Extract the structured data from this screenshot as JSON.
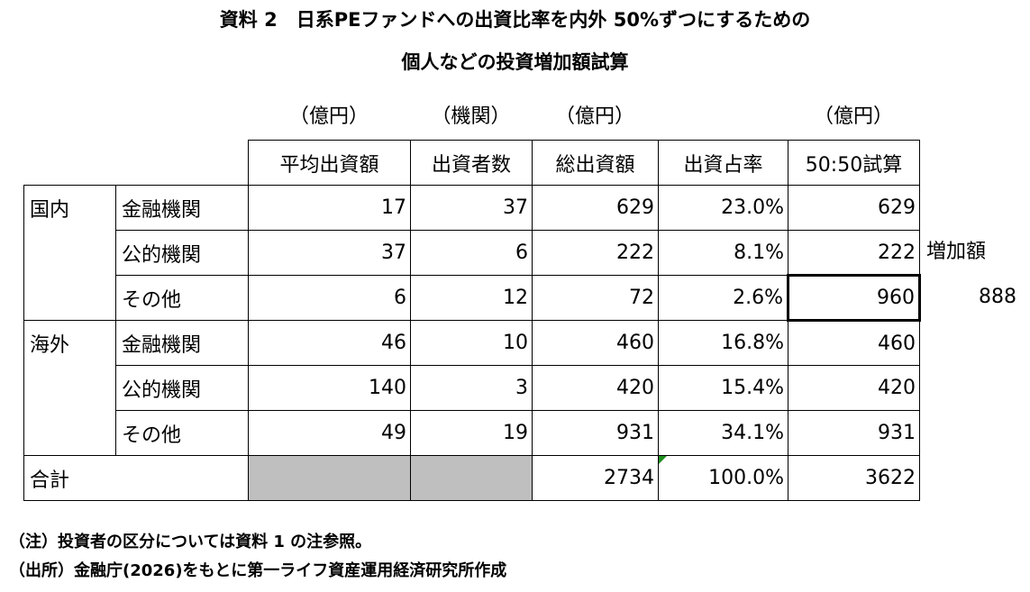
{
  "title": {
    "line1": "資料 2　日系PEファンドへの出資比率を内外 50%ずつにするための",
    "line2": "個人などの投資増加額試算"
  },
  "units": {
    "avg": "（億円）",
    "count": "（機関）",
    "total": "（億円）",
    "trial": "（億円）"
  },
  "table": {
    "headers": [
      "平均出資額",
      "出資者数",
      "総出資額",
      "出資占率",
      "50:50試算"
    ],
    "rows": [
      {
        "region": "国内",
        "category": "金融機関",
        "avg": "17",
        "count": "37",
        "total": "629",
        "share": "23.0%",
        "trial": "629"
      },
      {
        "region": "",
        "category": "公的機関",
        "avg": "37",
        "count": "6",
        "total": "222",
        "share": "8.1%",
        "trial": "222"
      },
      {
        "region": "",
        "category": "その他",
        "avg": "6",
        "count": "12",
        "total": "72",
        "share": "2.6%",
        "trial": "960"
      },
      {
        "region": "海外",
        "category": "金融機関",
        "avg": "46",
        "count": "10",
        "total": "460",
        "share": "16.8%",
        "trial": "460"
      },
      {
        "region": "",
        "category": "公的機関",
        "avg": "140",
        "count": "3",
        "total": "420",
        "share": "15.4%",
        "trial": "420"
      },
      {
        "region": "",
        "category": "その他",
        "avg": "49",
        "count": "19",
        "total": "931",
        "share": "34.1%",
        "trial": "931"
      }
    ],
    "total_row": {
      "label": "合計",
      "total": "2734",
      "share": "100.0%",
      "trial": "3622"
    }
  },
  "side": {
    "label": "増加額",
    "value": "888"
  },
  "notes": {
    "note1": "（注）投資者の区分については資料 1 の注参照。",
    "note2": "（出所）金融庁(2026)をもとに第一ライフ資産運用経済研究所作成"
  },
  "colors": {
    "shade": "#bfbfbf",
    "marker": "#1f8f1f"
  }
}
